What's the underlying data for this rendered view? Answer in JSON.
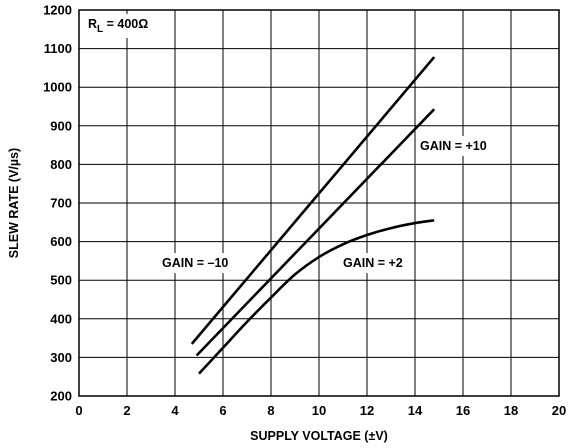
{
  "chart_data": {
    "type": "line",
    "xlabel": "SUPPLY VOLTAGE (±V)",
    "ylabel": "SLEW RATE (V/µs)",
    "xlim": [
      0,
      20
    ],
    "ylim": [
      200,
      1200
    ],
    "xticks": [
      "0",
      "2",
      "4",
      "6",
      "8",
      "10",
      "12",
      "14",
      "16",
      "18",
      "20"
    ],
    "yticks": [
      "200",
      "300",
      "400",
      "500",
      "600",
      "700",
      "800",
      "900",
      "1000",
      "1100",
      "1200"
    ],
    "grid": true,
    "condition": {
      "main": "R",
      "sub": "L",
      "rest": " = 400Ω"
    },
    "series": [
      {
        "name": "GAIN = –10",
        "x": [
          4.7,
          14.8
        ],
        "y": [
          335,
          1078
        ]
      },
      {
        "name": "GAIN = +10",
        "x": [
          4.9,
          14.8
        ],
        "y": [
          305,
          943
        ]
      },
      {
        "name": "GAIN = +2",
        "x": [
          5.0,
          6.0,
          7.0,
          8.0,
          9.0,
          10.0,
          11.0,
          12.0,
          13.0,
          14.0,
          14.8
        ],
        "y": [
          258,
          325,
          392,
          455,
          515,
          560,
          593,
          617,
          635,
          648,
          655
        ]
      }
    ]
  }
}
